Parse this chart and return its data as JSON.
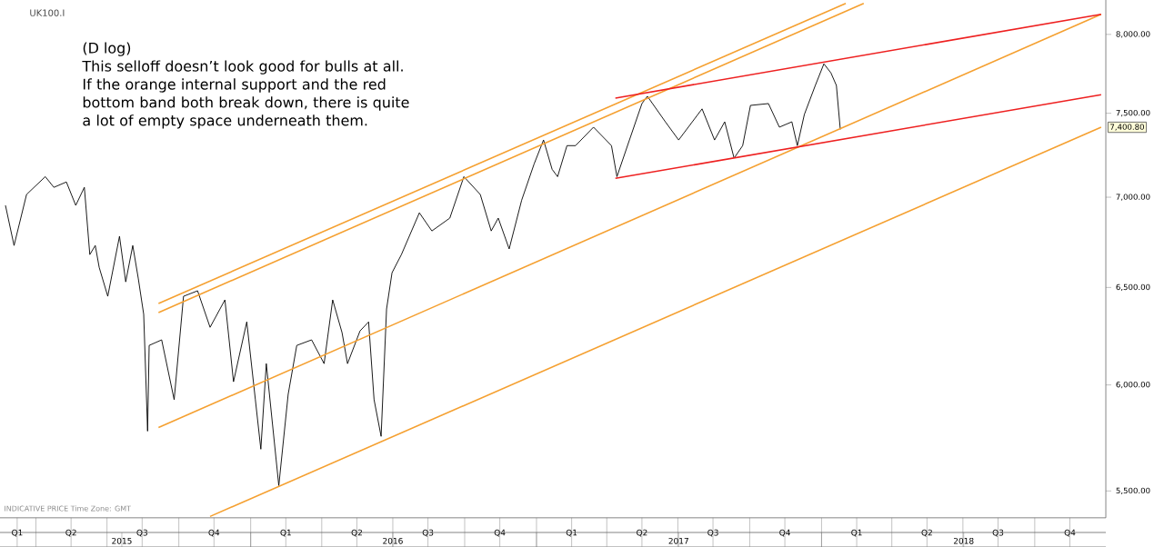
{
  "chart_data": {
    "type": "line",
    "title": "UK100.I",
    "annotations": [
      "(D log)",
      "This selloff doesn’t look good for bulls at all. If the orange internal support and the red bottom band both break down, there is quite a lot of empty space underneath them.",
      "INDICATIVE PRICE   Time Zone: GMT",
      "7,400.80"
    ],
    "log": true,
    "xlim": [
      "2015-02-14",
      "2018-12-31"
    ],
    "ylim": [
      5380,
      8230
    ],
    "yticks": [
      {
        "value": 5500,
        "label": "5,500.00"
      },
      {
        "value": 6000,
        "label": "6,000.00"
      },
      {
        "value": 6500,
        "label": "6,500.00"
      },
      {
        "value": 7000,
        "label": "7,000.00"
      },
      {
        "value": 7500,
        "label": "7,500.00"
      },
      {
        "value": 8000,
        "label": "8,000.00"
      }
    ],
    "xticks": [
      {
        "value": "2015-03-08",
        "label": "Q1"
      },
      {
        "value": "2015-04-01",
        "label": null
      },
      {
        "value": "2015-05-16",
        "label": "Q2"
      },
      {
        "value": "2015-07-01",
        "label": null
      },
      {
        "value": "2015-08-15",
        "label": "Q3"
      },
      {
        "value": "2015-10-01",
        "label": null
      },
      {
        "value": "2015-11-15",
        "label": "Q4"
      },
      {
        "value": "2016-01-01",
        "label": null
      },
      {
        "value": "2016-02-15",
        "label": "Q1"
      },
      {
        "value": "2016-04-01",
        "label": null
      },
      {
        "value": "2016-05-16",
        "label": "Q2"
      },
      {
        "value": "2016-07-01",
        "label": null
      },
      {
        "value": "2016-08-15",
        "label": "Q3"
      },
      {
        "value": "2016-10-01",
        "label": null
      },
      {
        "value": "2016-11-15",
        "label": "Q4"
      },
      {
        "value": "2017-01-01",
        "label": null
      },
      {
        "value": "2017-02-15",
        "label": "Q1"
      },
      {
        "value": "2017-04-01",
        "label": null
      },
      {
        "value": "2017-05-16",
        "label": "Q2"
      },
      {
        "value": "2017-07-01",
        "label": null
      },
      {
        "value": "2017-08-15",
        "label": "Q3"
      },
      {
        "value": "2017-10-01",
        "label": null
      },
      {
        "value": "2017-11-15",
        "label": "Q4"
      },
      {
        "value": "2018-01-01",
        "label": null
      },
      {
        "value": "2018-02-15",
        "label": "Q1"
      },
      {
        "value": "2018-04-01",
        "label": null
      },
      {
        "value": "2018-05-16",
        "label": "Q2"
      },
      {
        "value": "2018-07-01",
        "label": null
      },
      {
        "value": "2018-08-15",
        "label": "Q3"
      },
      {
        "value": "2018-10-01",
        "label": null
      },
      {
        "value": "2018-11-15",
        "label": "Q4"
      }
    ],
    "x2lim": [
      "2015-02-14",
      "2018-12-31"
    ],
    "x2ticks": [
      {
        "value": "2015-07-20",
        "label": "2015"
      },
      {
        "value": "2016-01-01",
        "label": null
      },
      {
        "value": "2016-07-01",
        "label": "2016"
      },
      {
        "value": "2017-01-01",
        "label": null
      },
      {
        "value": "2017-07-02",
        "label": "2017"
      },
      {
        "value": "2018-01-01",
        "label": null
      },
      {
        "value": "2018-07-02",
        "label": "2018"
      }
    ],
    "series": [
      {
        "color": "#000000",
        "x": [
          "2015-02-21",
          "2015-03-04",
          "2015-03-20",
          "2015-04-13",
          "2015-04-24",
          "2015-05-10",
          "2015-05-22",
          "2015-06-02",
          "2015-06-09",
          "2015-06-16",
          "2015-06-21",
          "2015-07-02",
          "2015-07-17",
          "2015-07-25",
          "2015-08-03",
          "2015-08-10",
          "2015-08-17",
          "2015-08-22",
          "2015-08-24",
          "2015-09-09",
          "2015-09-25",
          "2015-10-07",
          "2015-10-25",
          "2015-11-10",
          "2015-11-29",
          "2015-12-10",
          "2015-12-27",
          "2016-01-07",
          "2016-01-14",
          "2016-01-21",
          "2016-02-06",
          "2016-02-18",
          "2016-02-29",
          "2016-03-19",
          "2016-04-04",
          "2016-04-15",
          "2016-04-27",
          "2016-05-04",
          "2016-05-20",
          "2016-05-31",
          "2016-06-07",
          "2016-06-16",
          "2016-06-23",
          "2016-06-30",
          "2016-07-12",
          "2016-08-04",
          "2016-08-20",
          "2016-09-12",
          "2016-09-30",
          "2016-10-21",
          "2016-11-04",
          "2016-11-13",
          "2016-11-27",
          "2016-12-13",
          "2016-12-29",
          "2017-01-10",
          "2017-01-21",
          "2017-01-28",
          "2017-02-09",
          "2017-02-20",
          "2017-03-15",
          "2017-04-07",
          "2017-04-14",
          "2017-04-30",
          "2017-05-16",
          "2017-05-23",
          "2017-06-15",
          "2017-07-02",
          "2017-08-01",
          "2017-08-17",
          "2017-08-30",
          "2017-09-11",
          "2017-09-22",
          "2017-10-02",
          "2017-10-25",
          "2017-11-08",
          "2017-11-24",
          "2017-12-01",
          "2017-12-10",
          "2017-12-24",
          "2018-01-04",
          "2018-01-13",
          "2018-01-20",
          "2018-01-25"
        ],
        "values": [
          6953,
          6728,
          7015,
          7119,
          7057,
          7088,
          6953,
          7057,
          6678,
          6728,
          6608,
          6453,
          6779,
          6530,
          6728,
          6550,
          6358,
          5777,
          6198,
          6226,
          5928,
          6453,
          6482,
          6291,
          6434,
          6016,
          6319,
          5928,
          5692,
          6106,
          5524,
          5954,
          6198,
          6226,
          6106,
          6434,
          6263,
          6106,
          6272,
          6319,
          5928,
          5752,
          6386,
          6579,
          6678,
          6911,
          6809,
          6881,
          7119,
          7015,
          6809,
          6881,
          6709,
          6983,
          7194,
          7337,
          7162,
          7119,
          7303,
          7303,
          7414,
          7303,
          7119,
          7337,
          7559,
          7604,
          7447,
          7337,
          7526,
          7337,
          7447,
          7228,
          7303,
          7548,
          7559,
          7414,
          7447,
          7303,
          7492,
          7673,
          7811,
          7753,
          7673,
          7400.8
        ]
      },
      {
        "color": "#f5a030",
        "x": [
          "2015-09-05",
          "2018-02-01"
        ],
        "values": [
          6415,
          8206
        ]
      },
      {
        "color": "#f5a030",
        "x": [
          "2015-09-05",
          "2018-02-24"
        ],
        "values": [
          6367,
          8206
        ]
      },
      {
        "color": "#f5a030",
        "x": [
          "2015-09-05",
          "2018-12-25"
        ],
        "values": [
          5794,
          8133
        ]
      },
      {
        "color": "#f5a030",
        "x": [
          "2015-11-10",
          "2018-12-25"
        ],
        "values": [
          5386,
          7414
        ]
      },
      {
        "color": "#ee2020",
        "x": [
          "2017-04-12",
          "2018-12-25"
        ],
        "values": [
          7593,
          8133
        ]
      },
      {
        "color": "#ee2020",
        "x": [
          "2017-04-12",
          "2018-12-25"
        ],
        "values": [
          7109,
          7615
        ]
      }
    ]
  }
}
